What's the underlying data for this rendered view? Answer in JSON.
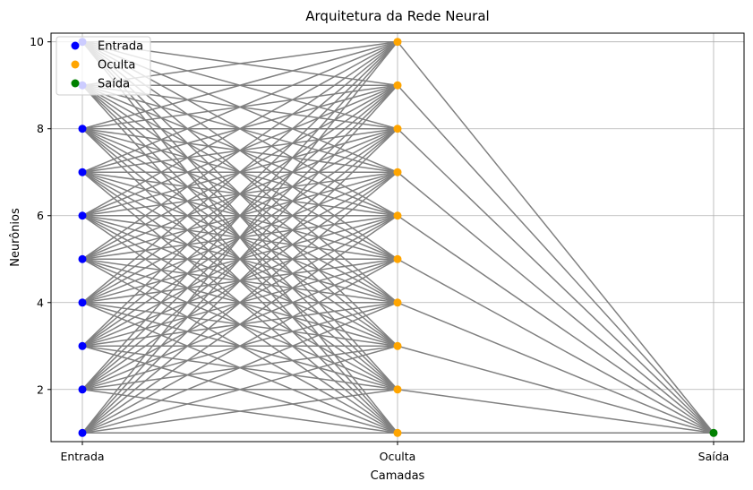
{
  "chart_data": {
    "type": "scatter",
    "title": "Arquitetura da Rede Neural",
    "xlabel": "Camadas",
    "ylabel": "Neurônios",
    "categories": [
      "Entrada",
      "Oculta",
      "Saída"
    ],
    "ylim": [
      0.8,
      10.2
    ],
    "yticks": [
      2,
      4,
      6,
      8,
      10
    ],
    "grid": true,
    "legend_placement": "top-left",
    "connection_color": "#808080",
    "series": [
      {
        "name": "Entrada",
        "color": "#0000ff",
        "x": "Entrada",
        "values": [
          1,
          2,
          3,
          4,
          5,
          6,
          7,
          8,
          9,
          10
        ]
      },
      {
        "name": "Oculta",
        "color": "#ffa500",
        "x": "Oculta",
        "values": [
          1,
          2,
          3,
          4,
          5,
          6,
          7,
          8,
          9,
          10
        ]
      },
      {
        "name": "Saída",
        "color": "#008000",
        "x": "Saída",
        "values": [
          1
        ]
      }
    ],
    "connections": [
      {
        "from": "Entrada",
        "to": "Oculta",
        "type": "all-to-all"
      },
      {
        "from": "Oculta",
        "to": "Saída",
        "type": "all-to-all"
      }
    ]
  }
}
